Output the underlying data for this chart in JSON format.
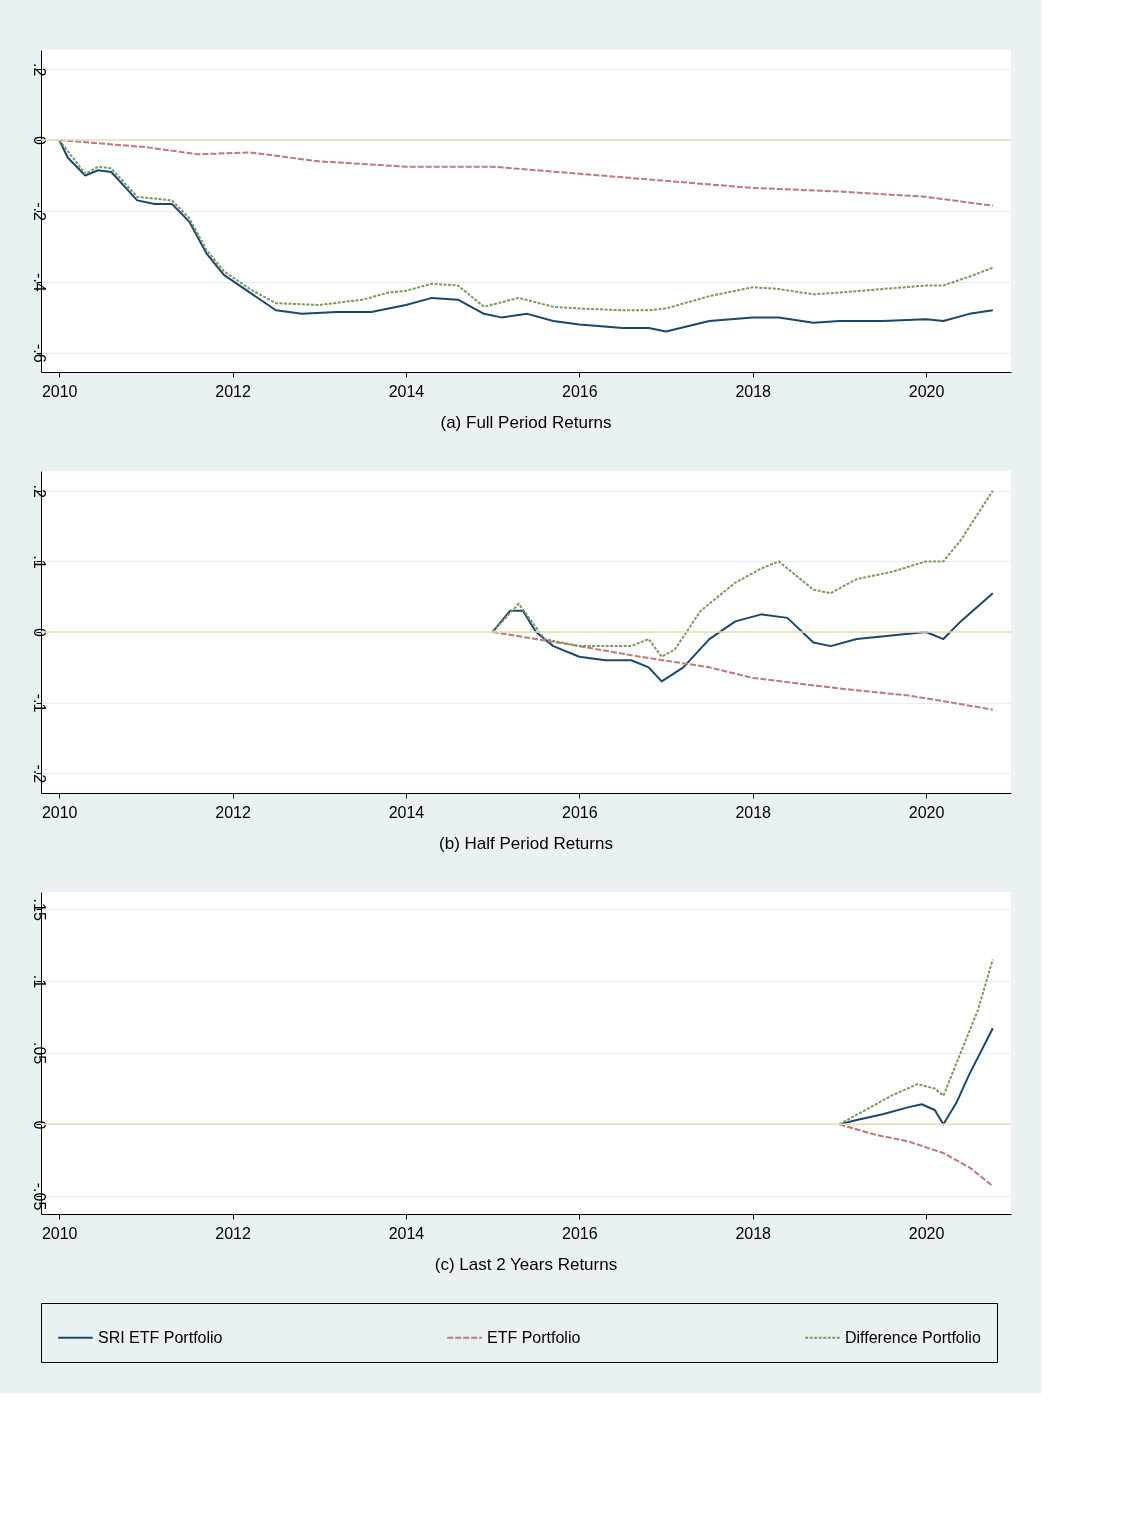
{
  "chart_data": [
    {
      "type": "line",
      "title": "(a) Full Period Returns",
      "xlim": [
        2009.79,
        2020.98
      ],
      "xticks": [
        2010,
        2012,
        2014,
        2016,
        2018,
        2020
      ],
      "ylim": [
        -0.654,
        0.254
      ],
      "yticks": [
        {
          "value": 0.2,
          "label": ".2"
        },
        0,
        {
          "value": -0.2,
          "label": "-.2"
        },
        {
          "value": -0.4,
          "label": "-.4"
        },
        {
          "value": -0.6,
          "label": "-.6"
        }
      ],
      "grid": "y",
      "legend": "bottom",
      "ref_lines": [
        {
          "axis": "y",
          "value": 0,
          "color": "#e8dcae"
        }
      ],
      "series": [
        {
          "name": "SRI ETF Portfolio",
          "color": "#1a476f",
          "line_style": "solid",
          "x": [
            2010.0,
            2010.1,
            2010.3,
            2010.45,
            2010.6,
            2010.75,
            2010.9,
            2011.1,
            2011.3,
            2011.5,
            2011.7,
            2011.9,
            2012.2,
            2012.5,
            2012.8,
            2013.2,
            2013.6,
            2014.0,
            2014.3,
            2014.6,
            2014.9,
            2015.1,
            2015.4,
            2015.7,
            2016.0,
            2016.5,
            2016.8,
            2017.0,
            2017.5,
            2018.0,
            2018.3,
            2018.7,
            2019.0,
            2019.5,
            2020.0,
            2020.2,
            2020.5,
            2020.77
          ],
          "values": [
            0,
            -0.05,
            -0.1,
            -0.085,
            -0.09,
            -0.13,
            -0.17,
            -0.18,
            -0.18,
            -0.23,
            -0.32,
            -0.38,
            -0.43,
            -0.48,
            -0.49,
            -0.485,
            -0.485,
            -0.465,
            -0.445,
            -0.45,
            -0.49,
            -0.5,
            -0.49,
            -0.51,
            -0.52,
            -0.53,
            -0.53,
            -0.54,
            -0.51,
            -0.5,
            -0.5,
            -0.515,
            -0.51,
            -0.51,
            -0.505,
            -0.51,
            -0.49,
            -0.48
          ]
        },
        {
          "name": "ETF Portfolio",
          "color": "#c07878",
          "line_style": "dashed",
          "x": [
            2010.0,
            2011.0,
            2011.6,
            2012.2,
            2013.0,
            2014.0,
            2015.0,
            2016.0,
            2017.0,
            2018.0,
            2019.0,
            2020.0,
            2020.77
          ],
          "values": [
            0,
            -0.02,
            -0.04,
            -0.035,
            -0.06,
            -0.075,
            -0.075,
            -0.095,
            -0.115,
            -0.135,
            -0.145,
            -0.16,
            -0.185
          ]
        },
        {
          "name": "Difference Portfolio",
          "color": "#7a9a5a",
          "line_style": "dotted",
          "x": [
            2010.0,
            2010.3,
            2010.45,
            2010.6,
            2010.9,
            2011.1,
            2011.3,
            2011.5,
            2011.7,
            2011.9,
            2012.2,
            2012.5,
            2013.0,
            2013.5,
            2013.8,
            2014.0,
            2014.3,
            2014.6,
            2014.9,
            2015.3,
            2015.7,
            2016.0,
            2016.5,
            2016.8,
            2017.0,
            2017.5,
            2018.0,
            2018.3,
            2018.7,
            2019.0,
            2019.5,
            2020.0,
            2020.2,
            2020.5,
            2020.77
          ],
          "values": [
            0,
            -0.095,
            -0.075,
            -0.08,
            -0.16,
            -0.165,
            -0.17,
            -0.22,
            -0.31,
            -0.37,
            -0.42,
            -0.46,
            -0.465,
            -0.45,
            -0.43,
            -0.425,
            -0.405,
            -0.41,
            -0.47,
            -0.445,
            -0.47,
            -0.475,
            -0.48,
            -0.48,
            -0.475,
            -0.44,
            -0.415,
            -0.42,
            -0.435,
            -0.43,
            -0.42,
            -0.41,
            -0.41,
            -0.385,
            -0.36
          ]
        }
      ]
    },
    {
      "type": "line",
      "title": "(b) Half Period Returns",
      "xlim": [
        2009.79,
        2020.98
      ],
      "xticks": [
        2010,
        2012,
        2014,
        2016,
        2018,
        2020
      ],
      "ylim": [
        -0.228,
        0.228
      ],
      "yticks": [
        {
          "value": 0.2,
          "label": ".2"
        },
        {
          "value": 0.1,
          "label": ".1"
        },
        0,
        {
          "value": -0.1,
          "label": "-.1"
        },
        {
          "value": -0.2,
          "label": "-.2"
        }
      ],
      "grid": "y",
      "legend": "bottom",
      "ref_lines": [
        {
          "axis": "y",
          "value": 0,
          "color": "#e8dcae"
        }
      ],
      "series": [
        {
          "name": "SRI ETF Portfolio",
          "color": "#1a476f",
          "line_style": "solid",
          "x": [
            2015.0,
            2015.2,
            2015.35,
            2015.5,
            2015.7,
            2016.0,
            2016.3,
            2016.6,
            2016.8,
            2016.95,
            2017.2,
            2017.5,
            2017.8,
            2018.1,
            2018.4,
            2018.7,
            2018.9,
            2019.2,
            2019.6,
            2020.0,
            2020.2,
            2020.4,
            2020.77
          ],
          "values": [
            0,
            0.03,
            0.03,
            0.0,
            -0.02,
            -0.035,
            -0.04,
            -0.04,
            -0.05,
            -0.07,
            -0.05,
            -0.01,
            0.015,
            0.025,
            0.02,
            -0.015,
            -0.02,
            -0.01,
            -0.005,
            0.0,
            -0.01,
            0.015,
            0.055
          ]
        },
        {
          "name": "ETF Portfolio",
          "color": "#c07878",
          "line_style": "dashed",
          "x": [
            2015.0,
            2015.5,
            2016.0,
            2016.7,
            2017.5,
            2018.0,
            2019.0,
            2019.8,
            2020.3,
            2020.77
          ],
          "values": [
            0,
            -0.01,
            -0.02,
            -0.035,
            -0.05,
            -0.065,
            -0.08,
            -0.09,
            -0.1,
            -0.11
          ]
        },
        {
          "name": "Difference Portfolio",
          "color": "#7a9a5a",
          "line_style": "dotted",
          "x": [
            2015.0,
            2015.3,
            2015.6,
            2016.0,
            2016.6,
            2016.8,
            2016.95,
            2017.1,
            2017.4,
            2017.8,
            2018.1,
            2018.3,
            2018.7,
            2018.9,
            2019.2,
            2019.6,
            2020.0,
            2020.2,
            2020.4,
            2020.77
          ],
          "values": [
            0,
            0.04,
            -0.01,
            -0.02,
            -0.02,
            -0.01,
            -0.035,
            -0.025,
            0.03,
            0.07,
            0.09,
            0.1,
            0.06,
            0.055,
            0.075,
            0.085,
            0.1,
            0.1,
            0.13,
            0.2
          ]
        }
      ]
    },
    {
      "type": "line",
      "title": "(c) Last 2 Years Returns",
      "xlim": [
        2009.79,
        2020.98
      ],
      "xticks": [
        2010,
        2012,
        2014,
        2016,
        2018,
        2020
      ],
      "ylim": [
        -0.0625,
        0.162
      ],
      "yticks": [
        {
          "value": 0.15,
          "label": ".15"
        },
        {
          "value": 0.1,
          "label": ".1"
        },
        {
          "value": 0.05,
          "label": ".05"
        },
        0,
        {
          "value": -0.05,
          "label": "-.05"
        }
      ],
      "grid": "y",
      "legend": "bottom",
      "ref_lines": [
        {
          "axis": "y",
          "value": 0,
          "color": "#e8dcae"
        }
      ],
      "series": [
        {
          "name": "SRI ETF Portfolio",
          "color": "#1a476f",
          "line_style": "solid",
          "x": [
            2019.0,
            2019.2,
            2019.5,
            2019.8,
            2019.95,
            2020.1,
            2020.2,
            2020.35,
            2020.5,
            2020.77
          ],
          "values": [
            0,
            0.003,
            0.007,
            0.012,
            0.014,
            0.01,
            0.0,
            0.015,
            0.035,
            0.067
          ]
        },
        {
          "name": "ETF Portfolio",
          "color": "#c07878",
          "line_style": "dashed",
          "x": [
            2019.0,
            2019.4,
            2019.8,
            2020.2,
            2020.5,
            2020.77
          ],
          "values": [
            0,
            -0.007,
            -0.012,
            -0.02,
            -0.03,
            -0.043
          ]
        },
        {
          "name": "Difference Portfolio",
          "color": "#7a9a5a",
          "line_style": "dotted",
          "x": [
            2019.0,
            2019.3,
            2019.6,
            2019.9,
            2020.1,
            2020.2,
            2020.4,
            2020.6,
            2020.77
          ],
          "values": [
            0,
            0.01,
            0.02,
            0.028,
            0.025,
            0.02,
            0.05,
            0.08,
            0.115
          ]
        }
      ]
    }
  ]
}
